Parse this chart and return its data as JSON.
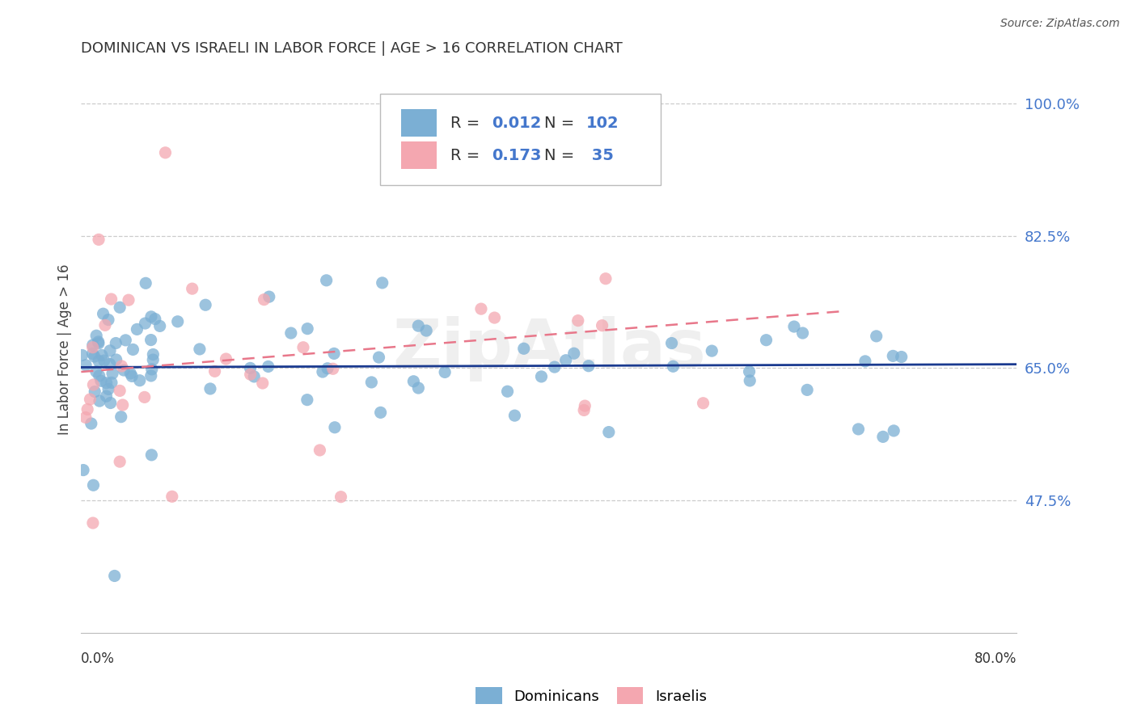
{
  "title": "DOMINICAN VS ISRAELI IN LABOR FORCE | AGE > 16 CORRELATION CHART",
  "source": "Source: ZipAtlas.com",
  "ylabel": "In Labor Force | Age > 16",
  "xlim": [
    0.0,
    0.8
  ],
  "ylim": [
    0.3,
    1.05
  ],
  "dominican_R": 0.012,
  "dominican_N": 102,
  "israeli_R": 0.173,
  "israeli_N": 35,
  "blue_color": "#7BAFD4",
  "pink_color": "#F4A7B0",
  "blue_line_color": "#1A3A8F",
  "pink_line_color": "#E8778A",
  "title_color": "#333333",
  "axis_label_color": "#4477CC",
  "ytick_vals": [
    0.475,
    0.65,
    0.825,
    1.0
  ],
  "ytick_labels": [
    "47.5%",
    "65.0%",
    "82.5%",
    "100.0%"
  ],
  "watermark": "ZipAtlas",
  "dom_line_y0": 0.651,
  "dom_line_y1": 0.655,
  "isr_line_y0": 0.645,
  "isr_line_y1": 0.725
}
